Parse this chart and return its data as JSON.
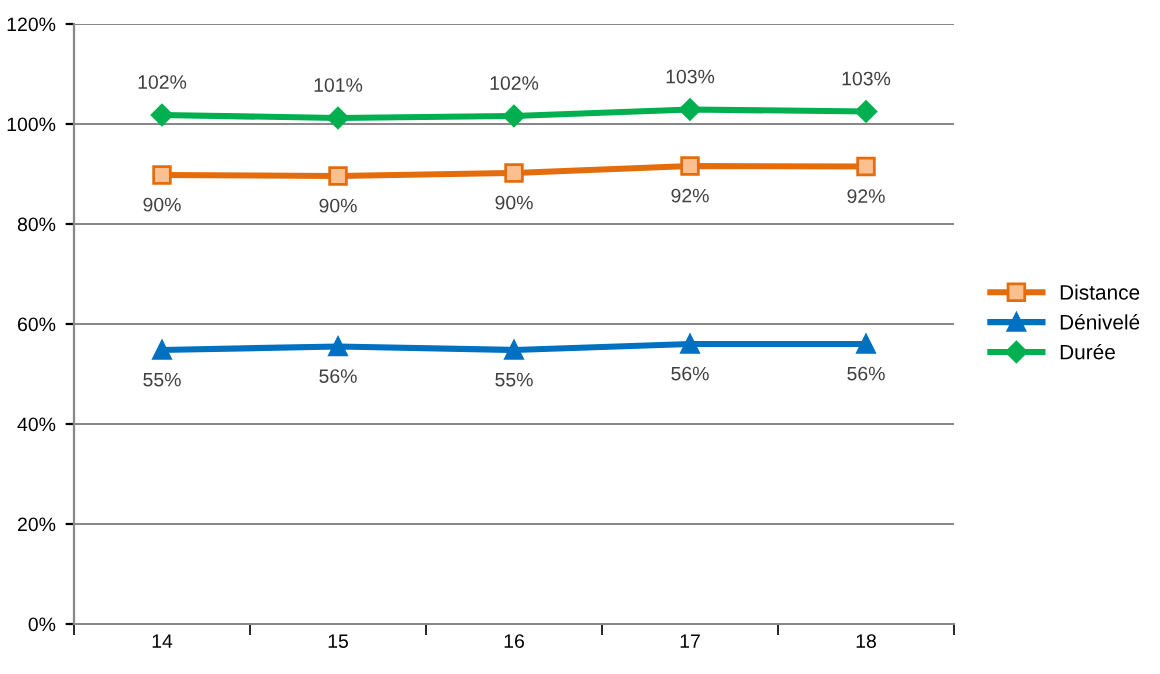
{
  "chart_data": {
    "type": "line",
    "categories": [
      "14",
      "15",
      "16",
      "17",
      "18"
    ],
    "series": [
      {
        "name": "Distance",
        "color": "#e46c0a",
        "marker": "square",
        "values": [
          89.8,
          89.6,
          90.2,
          91.6,
          91.5
        ],
        "value_labels": [
          "90%",
          "90%",
          "90%",
          "92%",
          "92%"
        ]
      },
      {
        "name": "Dénivelé",
        "color": "#0070c0",
        "marker": "triangle",
        "values": [
          54.8,
          55.5,
          54.8,
          56.0,
          56.0
        ],
        "value_labels": [
          "55%",
          "56%",
          "55%",
          "56%",
          "56%"
        ]
      },
      {
        "name": "Durée",
        "color": "#00b050",
        "marker": "diamond",
        "values": [
          101.8,
          101.2,
          101.6,
          102.9,
          102.5
        ],
        "value_labels": [
          "102%",
          "101%",
          "102%",
          "103%",
          "103%"
        ]
      }
    ],
    "ylim": [
      0,
      120
    ],
    "yticks": [
      {
        "value": 0,
        "label": "0%"
      },
      {
        "value": 20,
        "label": "20%"
      },
      {
        "value": 40,
        "label": "40%"
      },
      {
        "value": 60,
        "label": "60%"
      },
      {
        "value": 80,
        "label": "80%"
      },
      {
        "value": 100,
        "label": "100%"
      },
      {
        "value": 120,
        "label": "120%"
      }
    ],
    "grid": "y",
    "legend": "right",
    "line_style": "solid"
  }
}
